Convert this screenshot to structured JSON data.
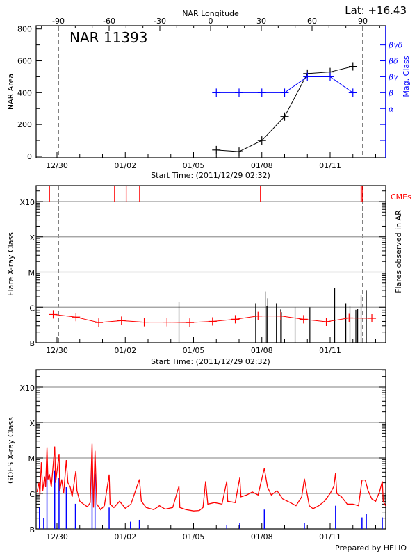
{
  "header": {
    "latitude_label": "Lat: +16.43",
    "region_label": "NAR 11393",
    "credit": "Prepared by HELIO"
  },
  "colors": {
    "area_series": "#000000",
    "mag_class": "#0000ff",
    "flare_mean": "#ff0000",
    "cme": "#ff0000",
    "goes_long": "#ff0000",
    "goes_short": "#0000ff",
    "gridline": "#999999"
  },
  "date_ticks": [
    "12/30",
    "01/02",
    "01/05",
    "01/08",
    "01/11"
  ],
  "chart_data": [
    {
      "type": "line",
      "panel": "area",
      "xlabel": "Start Time: (2011/12/29 02:32)",
      "top_xlabel": "NAR Longitude",
      "ylabel": "NAR Area",
      "right_ylabel": "Mag. Class",
      "yticks": [
        "0",
        "200",
        "400",
        "600",
        "800"
      ],
      "ylim": [
        0,
        800
      ],
      "xlim": [
        "12/29 02:32",
        "01/13 10:30"
      ],
      "longitude_ticks": [
        "-90",
        "-60",
        "-30",
        "0",
        "30",
        "60",
        "90"
      ],
      "longitude_limb_markers": [
        -90,
        90
      ],
      "mag_class_ticks": [
        "α",
        "β",
        "βγ",
        "βδ",
        "βγδ"
      ],
      "area": {
        "dates": [
          "01/06 00:00",
          "01/07 00:00",
          "01/08 00:00",
          "01/09 00:00",
          "01/10 00:00",
          "01/11 00:00",
          "01/12 00:00"
        ],
        "values": [
          40,
          30,
          100,
          250,
          520,
          530,
          565
        ]
      },
      "mag_class": {
        "dates": [
          "01/06 00:00",
          "01/07 00:00",
          "01/08 00:00",
          "01/09 00:00",
          "01/10 00:00",
          "01/11 00:00",
          "01/12 00:00"
        ],
        "values": [
          "β",
          "β",
          "β",
          "β",
          "βγ",
          "βγ",
          "β"
        ]
      }
    },
    {
      "type": "bar",
      "panel": "flares",
      "xlabel": "Start Time: (2011/12/29 02:32)",
      "ylabel": "Flare X-ray Class",
      "right_ylabel": "Flares observed in AR",
      "cme_label": "CMEs",
      "yticks": [
        "B",
        "C",
        "M",
        "X",
        "X10"
      ],
      "yscale": "log",
      "grid": true,
      "flares": [
        {
          "date": "01/04 08:38",
          "class": "C1.4"
        },
        {
          "date": "01/07 17:30",
          "class": "C1.3"
        },
        {
          "date": "01/08 03:36",
          "class": "C2.8"
        },
        {
          "date": "01/08 05:17",
          "class": "C1.1"
        },
        {
          "date": "01/08 06:14",
          "class": "C1.8"
        },
        {
          "date": "01/08 15:22",
          "class": "C1.3"
        },
        {
          "date": "01/08 19:55",
          "class": "B8.7"
        },
        {
          "date": "01/08 20:38",
          "class": "B7.3"
        },
        {
          "date": "01/09 11:02",
          "class": "C1.0"
        },
        {
          "date": "01/10 02:38",
          "class": "C1.0"
        },
        {
          "date": "01/11 04:48",
          "class": "C3.5"
        },
        {
          "date": "01/11 16:34",
          "class": "C1.3"
        },
        {
          "date": "01/11 20:53",
          "class": "C1.1"
        },
        {
          "date": "01/12 03:07",
          "class": "B8.5"
        },
        {
          "date": "01/12 05:02",
          "class": "B8.9"
        },
        {
          "date": "01/12 08:38",
          "class": "C2.2"
        },
        {
          "date": "01/12 14:10",
          "class": "C3.1"
        }
      ],
      "daily_level": {
        "dates": [
          "12/29 20:00",
          "12/30 20:00",
          "12/31 20:00",
          "01/01 20:00",
          "01/02 20:00",
          "01/03 20:00",
          "01/04 20:00",
          "01/05 20:00",
          "01/06 20:00",
          "01/07 20:00",
          "01/08 20:00",
          "01/09 20:00",
          "01/10 20:00",
          "01/11 20:00",
          "01/12 20:00"
        ],
        "values": [
          "B6.3",
          "B5.3",
          "B3.7",
          "B4.2",
          "B3.8",
          "B3.8",
          "B3.7",
          "B4.0",
          "B4.6",
          "B5.7",
          "B5.7",
          "B4.6",
          "B3.9",
          "B5.0",
          "B4.9"
        ]
      },
      "cmes": [
        "12/29 16:05",
        "01/01 12:43",
        "01/02 01:00",
        "01/02 15:07",
        "01/07 22:34",
        "01/12 08:38",
        "01/12 09:50"
      ]
    },
    {
      "type": "line",
      "panel": "goes",
      "ylabel": "GOES X-ray Class",
      "yticks": [
        "B",
        "C",
        "M",
        "X",
        "X10"
      ],
      "yscale": "log",
      "grid": true,
      "long_channel": [
        [
          "12/29 03:00",
          "C1.1"
        ],
        [
          "12/29 05:00",
          "C2.0"
        ],
        [
          "12/29 06:00",
          "B9.0"
        ],
        [
          "12/29 07:30",
          "C7.6"
        ],
        [
          "12/29 09:00",
          "C1.2"
        ],
        [
          "12/29 11:00",
          "C3.0"
        ],
        [
          "12/29 12:00",
          "C1.5"
        ],
        [
          "12/29 13:25",
          "M2.0"
        ],
        [
          "12/29 14:30",
          "C2.5"
        ],
        [
          "12/29 16:00",
          "C3.5"
        ],
        [
          "12/29 18:00",
          "C1.5"
        ],
        [
          "12/29 21:35",
          "M2.1"
        ],
        [
          "12/29 22:30",
          "C2.0"
        ],
        [
          "12/30 02:10",
          "M1.3"
        ],
        [
          "12/30 03:00",
          "C1.2"
        ],
        [
          "12/30 05:00",
          "C2.5"
        ],
        [
          "12/30 07:00",
          "C1.0"
        ],
        [
          "12/30 09:50",
          "C8.7"
        ],
        [
          "12/30 11:30",
          "C2.0"
        ],
        [
          "12/30 14:00",
          "C1.5"
        ],
        [
          "12/30 16:00",
          "B8.0"
        ],
        [
          "12/30 19:55",
          "C4.4"
        ],
        [
          "12/30 21:00",
          "C1.2"
        ],
        [
          "12/31 00:00",
          "B6.0"
        ],
        [
          "12/31 04:00",
          "B5.0"
        ],
        [
          "12/31 08:00",
          "B4.2"
        ],
        [
          "12/31 11:00",
          "B5.5"
        ],
        [
          "12/31 13:00",
          "M2.5"
        ],
        [
          "12/31 14:30",
          "B4.0"
        ],
        [
          "12/31 16:05",
          "M1.6"
        ],
        [
          "12/31 18:00",
          "B5.0"
        ],
        [
          "12/31 22:00",
          "B3.5"
        ],
        [
          "01/01 02:00",
          "B4.5"
        ],
        [
          "01/01 07:00",
          "C3.4"
        ],
        [
          "01/01 08:00",
          "B5.0"
        ],
        [
          "01/01 12:00",
          "B4.0"
        ],
        [
          "01/01 18:00",
          "B6.0"
        ],
        [
          "01/02 00:00",
          "B3.8"
        ],
        [
          "01/02 06:00",
          "B5.0"
        ],
        [
          "01/02 14:53",
          "C2.5"
        ],
        [
          "01/02 17:00",
          "B6.0"
        ],
        [
          "01/02 22:00",
          "B4.0"
        ],
        [
          "01/03 06:00",
          "B3.5"
        ],
        [
          "01/03 12:00",
          "B4.5"
        ],
        [
          "01/03 18:00",
          "B3.6"
        ],
        [
          "01/04 02:00",
          "B4.0"
        ],
        [
          "01/04 08:38",
          "C1.6"
        ],
        [
          "01/04 09:30",
          "B4.0"
        ],
        [
          "01/04 16:00",
          "B3.5"
        ],
        [
          "01/05 00:00",
          "B3.2"
        ],
        [
          "01/05 06:00",
          "B3.3"
        ],
        [
          "01/05 10:00",
          "B4.0"
        ],
        [
          "01/05 12:43",
          "C2.2"
        ],
        [
          "01/05 15:00",
          "B5.0"
        ],
        [
          "01/05 22:00",
          "B5.5"
        ],
        [
          "01/06 06:00",
          "B5.0"
        ],
        [
          "01/06 11:00",
          "C2.2"
        ],
        [
          "01/06 12:00",
          "B6.0"
        ],
        [
          "01/06 20:00",
          "B5.5"
        ],
        [
          "01/07 00:43",
          "C2.8"
        ],
        [
          "01/07 02:00",
          "B8.0"
        ],
        [
          "01/07 08:00",
          "B9.0"
        ],
        [
          "01/07 14:00",
          "C1.1"
        ],
        [
          "01/07 20:00",
          "B9.0"
        ],
        [
          "01/08 02:38",
          "C5.1"
        ],
        [
          "01/08 06:00",
          "C1.5"
        ],
        [
          "01/08 10:00",
          "B9.0"
        ],
        [
          "01/08 16:00",
          "C1.2"
        ],
        [
          "01/08 22:00",
          "B7.0"
        ],
        [
          "01/09 06:00",
          "B5.5"
        ],
        [
          "01/09 12:00",
          "B4.5"
        ],
        [
          "01/09 18:00",
          "B8.0"
        ],
        [
          "01/09 20:53",
          "C2.6"
        ],
        [
          "01/10 02:00",
          "B4.5"
        ],
        [
          "01/10 06:00",
          "B3.7"
        ],
        [
          "01/10 12:00",
          "B4.5"
        ],
        [
          "01/10 18:00",
          "B6.0"
        ],
        [
          "01/11 00:00",
          "C1.0"
        ],
        [
          "01/11 04:00",
          "C1.6"
        ],
        [
          "01/11 05:45",
          "C3.8"
        ],
        [
          "01/11 07:00",
          "C1.0"
        ],
        [
          "01/11 12:00",
          "B8.0"
        ],
        [
          "01/11 18:00",
          "B5.0"
        ],
        [
          "01/12 00:00",
          "B5.0"
        ],
        [
          "01/12 06:00",
          "B4.5"
        ],
        [
          "01/12 09:36",
          "C2.4"
        ],
        [
          "01/12 13:00",
          "C2.4"
        ],
        [
          "01/12 16:00",
          "C1.2"
        ],
        [
          "01/12 20:00",
          "B7.0"
        ],
        [
          "01/13 00:00",
          "B6.0"
        ],
        [
          "01/13 04:00",
          "C1.1"
        ],
        [
          "01/13 07:00",
          "C2.2"
        ],
        [
          "01/13 08:00",
          "B6.0"
        ],
        [
          "01/13 10:30",
          "B4.5"
        ]
      ],
      "short_channel_peaks": [
        [
          "12/29 05:30",
          "B4.0"
        ],
        [
          "12/29 10:00",
          "B2.0"
        ],
        [
          "12/29 13:25",
          "C4.5"
        ],
        [
          "12/29 21:35",
          "C4.5"
        ],
        [
          "12/30 02:10",
          "C2.7"
        ],
        [
          "12/30 09:50",
          "C1.5"
        ],
        [
          "12/30 19:26",
          "B5.1"
        ],
        [
          "12/31 13:00",
          "C6.3"
        ],
        [
          "12/31 16:05",
          "C3.6"
        ],
        [
          "01/01 07:00",
          "B4.0"
        ],
        [
          "01/02 05:31",
          "B1.6"
        ],
        [
          "01/02 14:53",
          "B1.8"
        ],
        [
          "01/06 11:00",
          "B1.3"
        ],
        [
          "01/07 00:43",
          "B1.5"
        ],
        [
          "01/08 02:38",
          "B3.5"
        ],
        [
          "01/09 20:53",
          "B1.5"
        ],
        [
          "01/11 05:45",
          "B4.5"
        ],
        [
          "01/12 09:36",
          "B2.1"
        ],
        [
          "01/12 14:10",
          "B2.6"
        ],
        [
          "01/13 07:00",
          "B2.1"
        ]
      ]
    }
  ]
}
